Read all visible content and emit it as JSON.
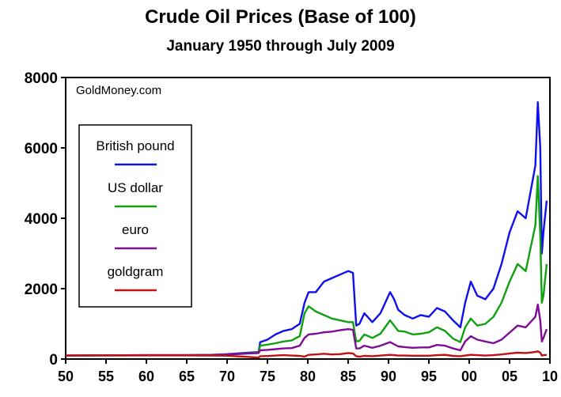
{
  "chart_data": {
    "type": "line",
    "title": "Crude Oil Prices (Base of 100)",
    "subtitle": "January 1950 through July 2009",
    "source_label": "GoldMoney.com",
    "xlabel": "",
    "ylabel": "",
    "x_ticks": [
      "50",
      "55",
      "60",
      "65",
      "70",
      "75",
      "80",
      "85",
      "90",
      "95",
      "00",
      "05",
      "10"
    ],
    "y_ticks": [
      "0",
      "2000",
      "4000",
      "6000",
      "8000"
    ],
    "xlim": [
      1950,
      2010
    ],
    "ylim": [
      0,
      8000
    ],
    "legend_position": "upper-left",
    "grid": false,
    "series": [
      {
        "name": "British pound",
        "color": "#1010ee",
        "x": [
          1950,
          1955,
          1960,
          1965,
          1968,
          1970,
          1972,
          1973.9,
          1974.1,
          1975,
          1976,
          1977,
          1978,
          1979,
          1979.6,
          1980.1,
          1981,
          1982,
          1983,
          1984,
          1985,
          1985.6,
          1986.0,
          1986.4,
          1987,
          1988,
          1989,
          1990.2,
          1990.7,
          1991.2,
          1992,
          1993,
          1994,
          1995,
          1996,
          1997,
          1998,
          1998.9,
          1999.5,
          2000.2,
          2001,
          2002,
          2003,
          2004,
          2005,
          2006,
          2007,
          2008.2,
          2008.5,
          2008.8,
          2009.0,
          2009.2,
          2009.6
        ],
        "values": [
          100,
          105,
          110,
          110,
          120,
          140,
          170,
          200,
          480,
          550,
          700,
          800,
          850,
          1000,
          1600,
          1900,
          1900,
          2200,
          2300,
          2400,
          2500,
          2450,
          950,
          1000,
          1300,
          1050,
          1300,
          1900,
          1700,
          1400,
          1250,
          1150,
          1250,
          1200,
          1450,
          1350,
          1100,
          900,
          1600,
          2200,
          1800,
          1700,
          2000,
          2700,
          3600,
          4200,
          4000,
          5500,
          7300,
          6000,
          3000,
          3600,
          4500
        ]
      },
      {
        "name": "US dollar",
        "color": "#10a010",
        "x": [
          1950,
          1955,
          1960,
          1965,
          1968,
          1970,
          1972,
          1973.9,
          1974.1,
          1975,
          1976,
          1977,
          1978,
          1979,
          1979.6,
          1980.1,
          1981,
          1982,
          1983,
          1984,
          1985,
          1985.6,
          1986.0,
          1986.4,
          1987,
          1988,
          1989,
          1990.2,
          1990.7,
          1991.2,
          1992,
          1993,
          1994,
          1995,
          1996,
          1997,
          1998,
          1998.9,
          1999.5,
          2000.2,
          2001,
          2002,
          2003,
          2004,
          2005,
          2006,
          2007,
          2008.2,
          2008.5,
          2008.8,
          2009.0,
          2009.2,
          2009.6
        ],
        "values": [
          100,
          105,
          110,
          110,
          115,
          130,
          150,
          190,
          380,
          410,
          450,
          500,
          530,
          650,
          1300,
          1500,
          1350,
          1250,
          1150,
          1100,
          1050,
          1050,
          500,
          520,
          700,
          600,
          720,
          1100,
          950,
          800,
          780,
          700,
          720,
          760,
          900,
          800,
          580,
          480,
          900,
          1150,
          950,
          1000,
          1200,
          1600,
          2200,
          2700,
          2500,
          3800,
          5200,
          3500,
          1600,
          1800,
          2700
        ]
      },
      {
        "name": "euro",
        "color": "#800c96",
        "x": [
          1950,
          1955,
          1960,
          1965,
          1968,
          1970,
          1972,
          1973.9,
          1974.1,
          1975,
          1976,
          1977,
          1978,
          1979,
          1979.6,
          1980.1,
          1981,
          1982,
          1983,
          1984,
          1985,
          1985.6,
          1986.0,
          1986.4,
          1987,
          1988,
          1989,
          1990.2,
          1990.7,
          1991.2,
          1992,
          1993,
          1994,
          1995,
          1996,
          1997,
          1998,
          1998.9,
          1999.5,
          2000.2,
          2001,
          2002,
          2003,
          2004,
          2005,
          2006,
          2007,
          2008.2,
          2008.5,
          2008.8,
          2009.0,
          2009.2,
          2009.6
        ],
        "values": [
          100,
          105,
          110,
          110,
          115,
          130,
          150,
          170,
          250,
          260,
          280,
          300,
          310,
          380,
          600,
          700,
          720,
          760,
          780,
          820,
          850,
          830,
          300,
          300,
          380,
          320,
          380,
          480,
          420,
          360,
          340,
          320,
          330,
          330,
          400,
          380,
          300,
          250,
          500,
          650,
          550,
          500,
          450,
          550,
          750,
          950,
          900,
          1200,
          1550,
          1100,
          500,
          600,
          850
        ]
      },
      {
        "name": "goldgram",
        "color": "#c01010",
        "x": [
          1950,
          1955,
          1960,
          1965,
          1968,
          1970,
          1972,
          1973.9,
          1974.1,
          1975,
          1976,
          1977,
          1978,
          1979,
          1979.6,
          1980.1,
          1981,
          1982,
          1983,
          1984,
          1985,
          1985.6,
          1986.0,
          1986.4,
          1987,
          1988,
          1989,
          1990.2,
          1990.7,
          1991.2,
          1992,
          1993,
          1994,
          1995,
          1996,
          1997,
          1998,
          1998.9,
          1999.5,
          2000.2,
          2001,
          2002,
          2003,
          2004,
          2005,
          2006,
          2007,
          2008.2,
          2008.5,
          2008.8,
          2009.0,
          2009.2,
          2009.6
        ],
        "values": [
          100,
          102,
          104,
          104,
          100,
          95,
          70,
          40,
          80,
          85,
          100,
          110,
          100,
          90,
          70,
          120,
          130,
          150,
          130,
          140,
          170,
          160,
          80,
          70,
          90,
          80,
          100,
          120,
          110,
          100,
          100,
          95,
          95,
          95,
          110,
          120,
          90,
          80,
          100,
          120,
          110,
          100,
          110,
          130,
          160,
          180,
          170,
          200,
          220,
          180,
          100,
          110,
          120
        ]
      }
    ]
  }
}
